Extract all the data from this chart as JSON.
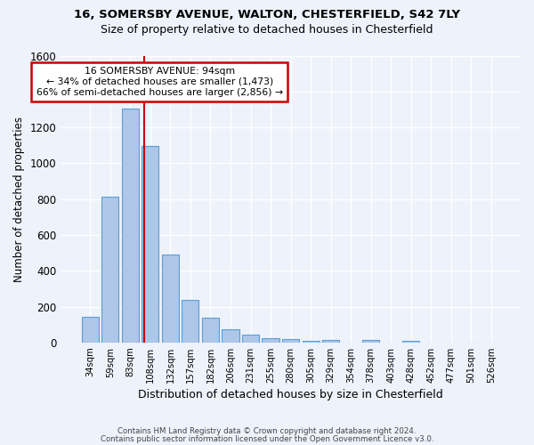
{
  "title1": "16, SOMERSBY AVENUE, WALTON, CHESTERFIELD, S42 7LY",
  "title2": "Size of property relative to detached houses in Chesterfield",
  "xlabel": "Distribution of detached houses by size in Chesterfield",
  "ylabel": "Number of detached properties",
  "footnote1": "Contains HM Land Registry data © Crown copyright and database right 2024.",
  "footnote2": "Contains public sector information licensed under the Open Government Licence v3.0.",
  "bar_labels": [
    "34sqm",
    "59sqm",
    "83sqm",
    "108sqm",
    "132sqm",
    "157sqm",
    "182sqm",
    "206sqm",
    "231sqm",
    "255sqm",
    "280sqm",
    "305sqm",
    "329sqm",
    "354sqm",
    "378sqm",
    "403sqm",
    "428sqm",
    "452sqm",
    "477sqm",
    "501sqm",
    "526sqm"
  ],
  "bar_values": [
    145,
    815,
    1305,
    1095,
    490,
    235,
    140,
    75,
    45,
    25,
    18,
    10,
    15,
    0,
    12,
    0,
    10,
    0,
    0,
    0,
    0
  ],
  "bar_color": "#aec6e8",
  "bar_edge_color": "#5a9fd4",
  "background_color": "#eef2fb",
  "grid_color": "#ffffff",
  "vline_x": 2.68,
  "vline_color": "#cc0000",
  "annotation_text": "16 SOMERSBY AVENUE: 94sqm\n← 34% of detached houses are smaller (1,473)\n66% of semi-detached houses are larger (2,856) →",
  "annotation_box_color": "white",
  "annotation_box_edge": "#cc0000",
  "ylim": [
    0,
    1600
  ],
  "yticks": [
    0,
    200,
    400,
    600,
    800,
    1000,
    1200,
    1400,
    1600
  ]
}
